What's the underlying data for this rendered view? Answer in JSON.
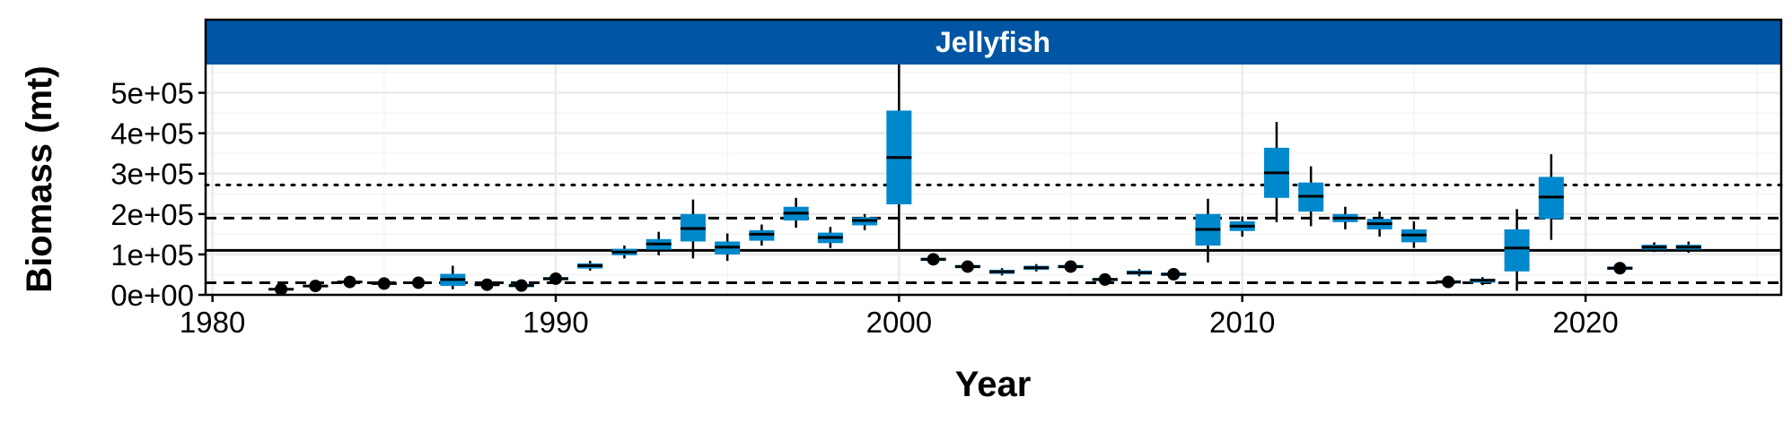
{
  "chart_data": {
    "type": "boxplot",
    "panel_title": "Jellyfish",
    "xlabel": "Year",
    "ylabel": "Biomass (mt)",
    "xlim": [
      1979.8,
      2025.7
    ],
    "ylim": [
      0,
      570000
    ],
    "x_ticks": [
      1980,
      1990,
      2000,
      2010,
      2020
    ],
    "x_tick_labels": [
      "1980",
      "1990",
      "2000",
      "2010",
      "2020"
    ],
    "y_ticks": [
      0,
      100000,
      200000,
      300000,
      400000,
      500000
    ],
    "y_tick_labels": [
      "0e+00",
      "1e+05",
      "2e+05",
      "3e+05",
      "4e+05",
      "5e+05"
    ],
    "grid": true,
    "reference_lines": [
      {
        "style": "solid",
        "y": 110000
      },
      {
        "style": "dashed",
        "y": 190000
      },
      {
        "style": "dashed",
        "y": 30000
      },
      {
        "style": "dotted",
        "y": 272000
      }
    ],
    "boxes": [
      {
        "year": 1982,
        "q1": 12000,
        "median": 14000,
        "q3": 16000,
        "low": 10000,
        "high": 18000,
        "outlier": 14000
      },
      {
        "year": 1983,
        "q1": 20000,
        "median": 22000,
        "q3": 24000,
        "low": 18000,
        "high": 26000,
        "outlier": 22000
      },
      {
        "year": 1984,
        "q1": 30000,
        "median": 32000,
        "q3": 34000,
        "low": 28000,
        "high": 36000,
        "outlier": 32000
      },
      {
        "year": 1985,
        "q1": 26000,
        "median": 28000,
        "q3": 30000,
        "low": 24000,
        "high": 32000,
        "outlier": 28000
      },
      {
        "year": 1986,
        "q1": 28000,
        "median": 30000,
        "q3": 32000,
        "low": 26000,
        "high": 34000,
        "outlier": 30000
      },
      {
        "year": 1987,
        "q1": 22000,
        "median": 38000,
        "q3": 52000,
        "low": 14000,
        "high": 72000
      },
      {
        "year": 1988,
        "q1": 23000,
        "median": 25000,
        "q3": 27000,
        "low": 21000,
        "high": 29000,
        "outlier": 25000
      },
      {
        "year": 1989,
        "q1": 19000,
        "median": 23000,
        "q3": 27000,
        "low": 15000,
        "high": 31000,
        "outlier": 23000
      },
      {
        "year": 1990,
        "q1": 36000,
        "median": 40000,
        "q3": 44000,
        "low": 32000,
        "high": 50000,
        "outlier": 40000
      },
      {
        "year": 1991,
        "q1": 65000,
        "median": 72000,
        "q3": 78000,
        "low": 60000,
        "high": 84000
      },
      {
        "year": 1992,
        "q1": 98000,
        "median": 106000,
        "q3": 114000,
        "low": 90000,
        "high": 122000
      },
      {
        "year": 1993,
        "q1": 112000,
        "median": 126000,
        "q3": 138000,
        "low": 98000,
        "high": 156000
      },
      {
        "year": 1994,
        "q1": 132000,
        "median": 164000,
        "q3": 200000,
        "low": 90000,
        "high": 236000
      },
      {
        "year": 1995,
        "q1": 100000,
        "median": 118000,
        "q3": 132000,
        "low": 84000,
        "high": 152000
      },
      {
        "year": 1996,
        "q1": 134000,
        "median": 150000,
        "q3": 160000,
        "low": 122000,
        "high": 174000
      },
      {
        "year": 1997,
        "q1": 184000,
        "median": 202000,
        "q3": 218000,
        "low": 166000,
        "high": 240000
      },
      {
        "year": 1998,
        "q1": 128000,
        "median": 142000,
        "q3": 154000,
        "low": 116000,
        "high": 168000
      },
      {
        "year": 1999,
        "q1": 172000,
        "median": 184000,
        "q3": 192000,
        "low": 160000,
        "high": 200000
      },
      {
        "year": 2000,
        "q1": 224000,
        "median": 340000,
        "q3": 456000,
        "low": 110000,
        "high": 570000
      },
      {
        "year": 2001,
        "q1": 84000,
        "median": 88000,
        "q3": 92000,
        "low": 80000,
        "high": 96000,
        "outlier": 88000
      },
      {
        "year": 2002,
        "q1": 66000,
        "median": 70000,
        "q3": 74000,
        "low": 62000,
        "high": 78000,
        "outlier": 70000
      },
      {
        "year": 2003,
        "q1": 52000,
        "median": 57000,
        "q3": 62000,
        "low": 48000,
        "high": 66000
      },
      {
        "year": 2004,
        "q1": 62000,
        "median": 67000,
        "q3": 72000,
        "low": 58000,
        "high": 76000
      },
      {
        "year": 2005,
        "q1": 66000,
        "median": 70000,
        "q3": 74000,
        "low": 62000,
        "high": 78000,
        "outlier": 70000
      },
      {
        "year": 2006,
        "q1": 34000,
        "median": 38000,
        "q3": 42000,
        "low": 30000,
        "high": 46000,
        "outlier": 38000
      },
      {
        "year": 2007,
        "q1": 50000,
        "median": 55000,
        "q3": 60000,
        "low": 46000,
        "high": 64000
      },
      {
        "year": 2008,
        "q1": 47000,
        "median": 51000,
        "q3": 55000,
        "low": 43000,
        "high": 59000,
        "outlier": 51000
      },
      {
        "year": 2009,
        "q1": 122000,
        "median": 162000,
        "q3": 200000,
        "low": 80000,
        "high": 238000
      },
      {
        "year": 2010,
        "q1": 158000,
        "median": 170000,
        "q3": 182000,
        "low": 144000,
        "high": 194000
      },
      {
        "year": 2011,
        "q1": 240000,
        "median": 302000,
        "q3": 364000,
        "low": 180000,
        "high": 428000
      },
      {
        "year": 2012,
        "q1": 206000,
        "median": 244000,
        "q3": 278000,
        "low": 170000,
        "high": 318000
      },
      {
        "year": 2013,
        "q1": 180000,
        "median": 190000,
        "q3": 200000,
        "low": 162000,
        "high": 218000
      },
      {
        "year": 2014,
        "q1": 162000,
        "median": 176000,
        "q3": 188000,
        "low": 144000,
        "high": 206000
      },
      {
        "year": 2015,
        "q1": 130000,
        "median": 148000,
        "q3": 162000,
        "low": 116000,
        "high": 182000
      },
      {
        "year": 2016,
        "q1": 28000,
        "median": 32000,
        "q3": 36000,
        "low": 24000,
        "high": 40000,
        "outlier": 32000
      },
      {
        "year": 2017,
        "q1": 30000,
        "median": 36000,
        "q3": 40000,
        "low": 24000,
        "high": 44000
      },
      {
        "year": 2018,
        "q1": 58000,
        "median": 116000,
        "q3": 162000,
        "low": 10000,
        "high": 212000
      },
      {
        "year": 2019,
        "q1": 188000,
        "median": 242000,
        "q3": 292000,
        "low": 136000,
        "high": 348000
      },
      {
        "year": 2021,
        "q1": 62000,
        "median": 66000,
        "q3": 70000,
        "low": 58000,
        "high": 74000,
        "outlier": 66000
      },
      {
        "year": 2022,
        "q1": 112000,
        "median": 118000,
        "q3": 124000,
        "low": 106000,
        "high": 130000
      },
      {
        "year": 2023,
        "q1": 112000,
        "median": 118000,
        "q3": 124000,
        "low": 104000,
        "high": 132000
      }
    ],
    "colors": {
      "strip_fill": "#0055A4",
      "box_fill": "#0088CC",
      "grid_major": "#EBEBEB",
      "grid_minor": "#F5F5F5",
      "line": "#000000"
    }
  }
}
